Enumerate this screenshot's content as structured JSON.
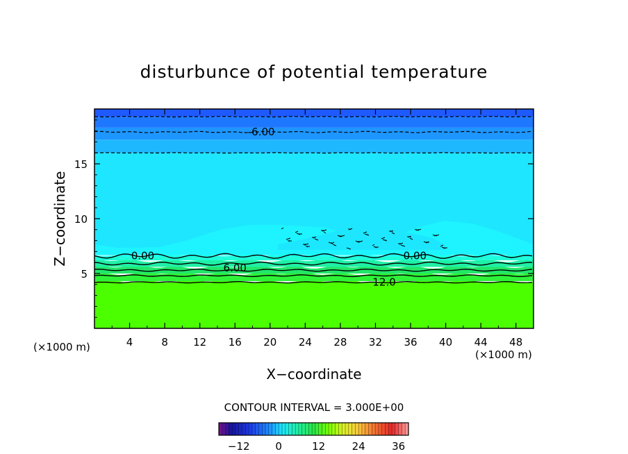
{
  "chart_data": {
    "type": "heatmap",
    "title": "disturbunce of potential temperature",
    "xlabel": "X−coordinate",
    "ylabel": "Z−coordinate",
    "x_unit_left": "(×1000 m)",
    "x_unit_right": "(×1000 m)",
    "xlim": [
      0,
      50
    ],
    "ylim": [
      0,
      20
    ],
    "x_ticks": [
      4,
      8,
      12,
      16,
      20,
      24,
      28,
      32,
      36,
      40,
      44,
      48
    ],
    "x_tick_labels": [
      "4",
      "8",
      "12",
      "16",
      "20",
      "24",
      "28",
      "32",
      "36",
      "40",
      "44",
      "48"
    ],
    "y_ticks": [
      5,
      10,
      15
    ],
    "y_tick_labels": [
      "5",
      "10",
      "15"
    ],
    "contour_interval_text": "CONTOUR INTERVAL = 3.000E+00",
    "contour_labels": [
      {
        "text": "-6.00",
        "x": 19,
        "z": 17.9
      },
      {
        "text": "0.00",
        "x": 5.5,
        "z": 6.6
      },
      {
        "text": "0.00",
        "x": 36.5,
        "z": 6.6
      },
      {
        "text": "6.00",
        "x": 16,
        "z": 5.5
      },
      {
        "text": "12.0",
        "x": 33,
        "z": 4.2
      }
    ],
    "colorbar": {
      "vmin": -18,
      "vmax": 39,
      "ticks": [
        -12,
        0,
        12,
        24,
        36
      ],
      "tick_labels": [
        "−12",
        "0",
        "12",
        "24",
        "36"
      ]
    },
    "field_bands": [
      {
        "z_from": 0,
        "z_to": 4.3,
        "value": 14,
        "color": "#4cff00"
      },
      {
        "z_from": 4.3,
        "z_to": 5.0,
        "value": 10,
        "color": "#2ef238"
      },
      {
        "z_from": 5.0,
        "z_to": 5.6,
        "value": 7,
        "color": "#22e66a"
      },
      {
        "z_from": 5.6,
        "z_to": 6.2,
        "value": 4,
        "color": "#1ff0a5"
      },
      {
        "z_from": 6.2,
        "z_to": 6.7,
        "value": 1,
        "color": "#1effd8"
      },
      {
        "z_from": 6.7,
        "z_to": 16.0,
        "value": -2,
        "color": "#1ee6ff"
      },
      {
        "z_from": 16.0,
        "z_to": 17.2,
        "value": -4,
        "color": "#1eb8ff"
      },
      {
        "z_from": 17.2,
        "z_to": 18.3,
        "value": -6,
        "color": "#1e96ff"
      },
      {
        "z_from": 18.3,
        "z_to": 19.3,
        "value": -8,
        "color": "#1e78ff"
      },
      {
        "z_from": 19.3,
        "z_to": 20.0,
        "value": -10,
        "color": "#1e5aff"
      }
    ]
  }
}
